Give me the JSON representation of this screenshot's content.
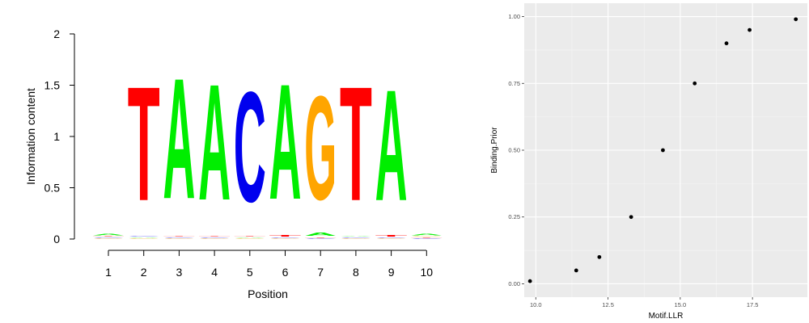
{
  "chart_data": [
    {
      "type": "sequence_logo",
      "xlabel": "Position",
      "ylabel": "Information content",
      "ylim": [
        0,
        2
      ],
      "yticks": [
        "0",
        "0.5",
        "1",
        "1.5",
        "2"
      ],
      "xticks": [
        "1",
        "2",
        "3",
        "4",
        "5",
        "6",
        "7",
        "8",
        "9",
        "10"
      ],
      "colors": {
        "A": "#00ee00",
        "C": "#0000ee",
        "G": "#ffa500",
        "T": "#ff0000"
      },
      "positions": [
        {
          "position": 1,
          "letters": [
            {
              "base": "G",
              "bits": 0.01
            },
            {
              "base": "C",
              "bits": 0.01
            },
            {
              "base": "T",
              "bits": 0.01
            },
            {
              "base": "A",
              "bits": 0.02
            }
          ]
        },
        {
          "position": 2,
          "letters": [
            {
              "base": "G",
              "bits": 0.01
            },
            {
              "base": "A",
              "bits": 0.01
            },
            {
              "base": "C",
              "bits": 0.01
            },
            {
              "base": "T",
              "bits": 1.78
            }
          ]
        },
        {
          "position": 3,
          "letters": [
            {
              "base": "G",
              "bits": 0.01
            },
            {
              "base": "C",
              "bits": 0.01
            },
            {
              "base": "T",
              "bits": 0.01
            },
            {
              "base": "A",
              "bits": 1.88
            }
          ]
        },
        {
          "position": 4,
          "letters": [
            {
              "base": "G",
              "bits": 0.01
            },
            {
              "base": "C",
              "bits": 0.01
            },
            {
              "base": "T",
              "bits": 0.01
            },
            {
              "base": "A",
              "bits": 1.81
            }
          ]
        },
        {
          "position": 5,
          "letters": [
            {
              "base": "G",
              "bits": 0.01
            },
            {
              "base": "A",
              "bits": 0.01
            },
            {
              "base": "T",
              "bits": 0.01
            },
            {
              "base": "C",
              "bits": 1.72
            }
          ]
        },
        {
          "position": 6,
          "letters": [
            {
              "base": "G",
              "bits": 0.01
            },
            {
              "base": "C",
              "bits": 0.01
            },
            {
              "base": "T",
              "bits": 0.02
            },
            {
              "base": "A",
              "bits": 1.8
            }
          ]
        },
        {
          "position": 7,
          "letters": [
            {
              "base": "C",
              "bits": 0.01
            },
            {
              "base": "T",
              "bits": 0.01
            },
            {
              "base": "A",
              "bits": 0.05
            },
            {
              "base": "G",
              "bits": 1.62
            }
          ]
        },
        {
          "position": 8,
          "letters": [
            {
              "base": "G",
              "bits": 0.01
            },
            {
              "base": "C",
              "bits": 0.01
            },
            {
              "base": "A",
              "bits": 0.01
            },
            {
              "base": "T",
              "bits": 1.78
            }
          ]
        },
        {
          "position": 9,
          "letters": [
            {
              "base": "G",
              "bits": 0.01
            },
            {
              "base": "C",
              "bits": 0.01
            },
            {
              "base": "T",
              "bits": 0.02
            },
            {
              "base": "A",
              "bits": 1.73
            }
          ]
        },
        {
          "position": 10,
          "letters": [
            {
              "base": "C",
              "bits": 0.01
            },
            {
              "base": "T",
              "bits": 0.01
            },
            {
              "base": "G",
              "bits": 0.01
            },
            {
              "base": "A",
              "bits": 0.02
            }
          ]
        }
      ]
    },
    {
      "type": "scatter",
      "xlabel": "Motif.LLR",
      "ylabel": "Binding.Prior",
      "xlim": [
        9.6,
        19.4
      ],
      "ylim": [
        -0.05,
        1.05
      ],
      "xticks": [
        10.0,
        12.5,
        15.0,
        17.5
      ],
      "xtick_labels": [
        "10.0",
        "12.5",
        "15.0",
        "17.5"
      ],
      "yticks": [
        0.0,
        0.25,
        0.5,
        0.75,
        1.0
      ],
      "ytick_labels": [
        "0.00",
        "0.25",
        "0.50",
        "0.75",
        "1.00"
      ],
      "grid": true,
      "panel_color": "#ebebeb",
      "point_color": "#000000",
      "x": [
        9.8,
        11.4,
        12.2,
        13.3,
        14.4,
        15.5,
        16.6,
        17.4,
        19.0
      ],
      "y": [
        0.01,
        0.05,
        0.1,
        0.25,
        0.5,
        0.75,
        0.9,
        0.95,
        0.99
      ]
    }
  ]
}
